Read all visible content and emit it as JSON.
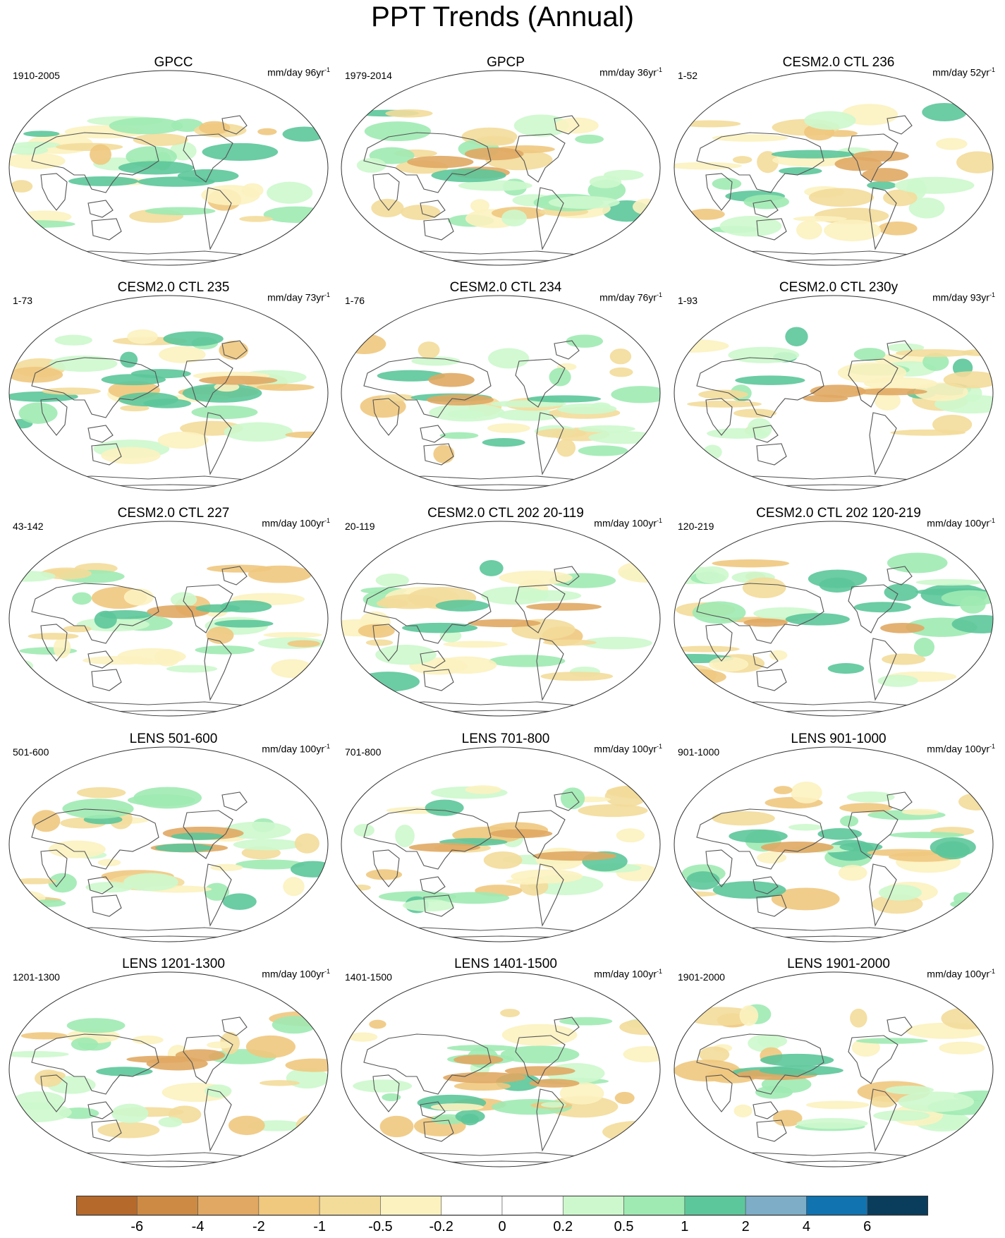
{
  "title": "PPT Trends (Annual)",
  "panels": [
    {
      "title": "GPCC",
      "period": "1910-2005",
      "units_prefix": "mm/day 96yr",
      "exp": "-1"
    },
    {
      "title": "GPCP",
      "period": "1979-2014",
      "units_prefix": "mm/day 36yr",
      "exp": "-1"
    },
    {
      "title": "CESM2.0 CTL 236",
      "period": "1-52",
      "units_prefix": "mm/day 52yr",
      "exp": "-1"
    },
    {
      "title": "CESM2.0 CTL 235",
      "period": "1-73",
      "units_prefix": "mm/day 73yr",
      "exp": "-1"
    },
    {
      "title": "CESM2.0 CTL 234",
      "period": "1-76",
      "units_prefix": "mm/day 76yr",
      "exp": "-1"
    },
    {
      "title": "CESM2.0 CTL 230y",
      "period": "1-93",
      "units_prefix": "mm/day 93yr",
      "exp": "-1"
    },
    {
      "title": "CESM2.0 CTL 227",
      "period": "43-142",
      "units_prefix": "mm/day 100yr",
      "exp": "-1"
    },
    {
      "title": "CESM2.0 CTL 202 20-119",
      "period": "20-119",
      "units_prefix": "mm/day 100yr",
      "exp": "-1"
    },
    {
      "title": "CESM2.0 CTL 202 120-219",
      "period": "120-219",
      "units_prefix": "mm/day 100yr",
      "exp": "-1"
    },
    {
      "title": "LENS 501-600",
      "period": "501-600",
      "units_prefix": "mm/day 100yr",
      "exp": "-1"
    },
    {
      "title": "LENS 701-800",
      "period": "701-800",
      "units_prefix": "mm/day 100yr",
      "exp": "-1"
    },
    {
      "title": "LENS 901-1000",
      "period": "901-1000",
      "units_prefix": "mm/day 100yr",
      "exp": "-1"
    },
    {
      "title": "LENS 1201-1300",
      "period": "1201-1300",
      "units_prefix": "mm/day 100yr",
      "exp": "-1"
    },
    {
      "title": "LENS 1401-1500",
      "period": "1401-1500",
      "units_prefix": "mm/day 100yr",
      "exp": "-1"
    },
    {
      "title": "LENS 1901-2000",
      "period": "1901-2000",
      "units_prefix": "mm/day 100yr",
      "exp": "-1"
    }
  ],
  "colorbar": {
    "colors": [
      "#b5692b",
      "#cc8a44",
      "#e0a863",
      "#f0c87e",
      "#f3dc9a",
      "#fcf2c0",
      "#ffffff",
      "#ffffff",
      "#cdf8cd",
      "#9eeab2",
      "#5cc79a",
      "#7dadc7",
      "#1173b0",
      "#0a3d5c"
    ],
    "labels": [
      "-6",
      "-4",
      "-2",
      "-1",
      "-0.5",
      "-0.2",
      "0",
      "0.2",
      "0.5",
      "1",
      "2",
      "4",
      "6"
    ]
  }
}
